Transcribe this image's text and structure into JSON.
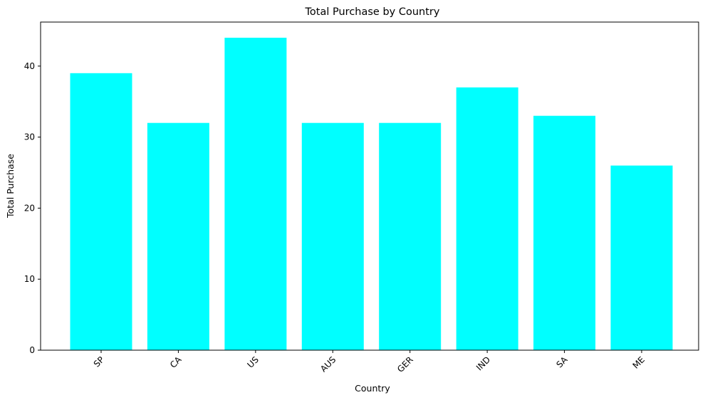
{
  "chart_data": {
    "type": "bar",
    "title": "Total Purchase by Country",
    "xlabel": "Country",
    "ylabel": "Total Purchase",
    "categories": [
      "SP",
      "CA",
      "US",
      "AUS",
      "GER",
      "IND",
      "SA",
      "ME"
    ],
    "values": [
      39,
      32,
      44,
      32,
      32,
      37,
      33,
      26
    ],
    "ylim": [
      0,
      46.2
    ],
    "yticks": [
      0,
      10,
      20,
      30,
      40
    ],
    "ytick_labels": [
      "0",
      "10",
      "20",
      "30",
      "40"
    ],
    "xtick_rotation": 45,
    "grid": false,
    "bar_color": "#00ffff"
  }
}
